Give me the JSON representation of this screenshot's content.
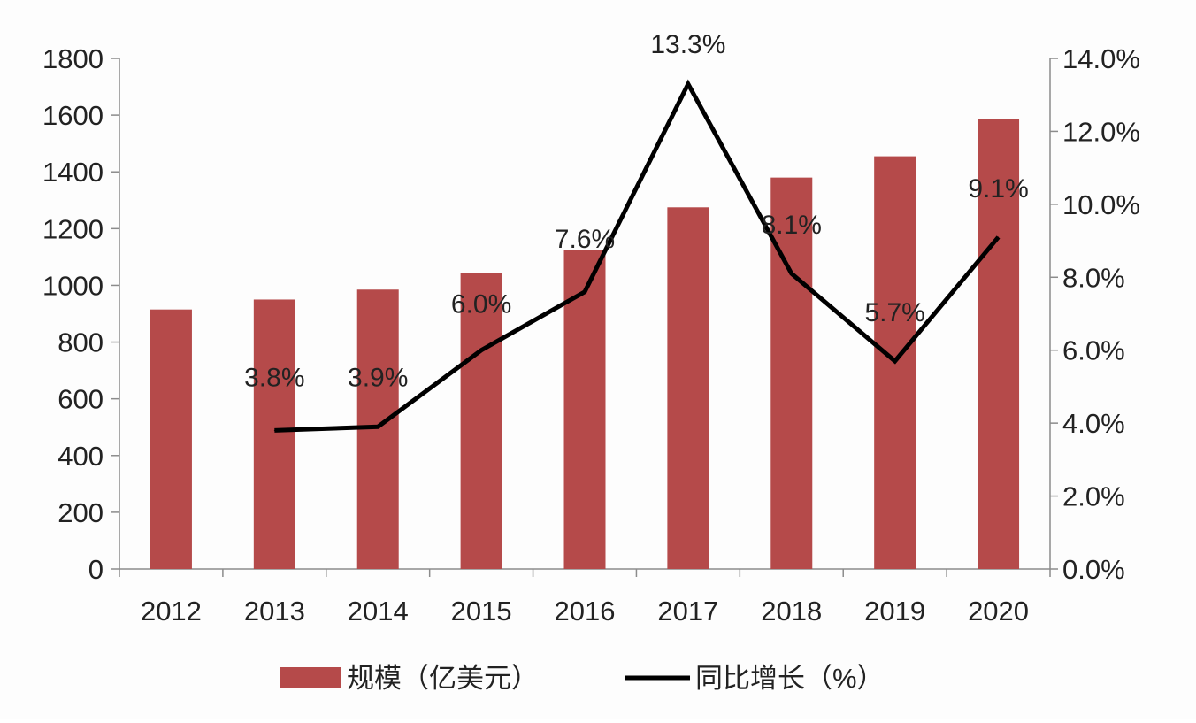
{
  "chart_data": {
    "type": "bar+line",
    "categories": [
      "2012",
      "2013",
      "2014",
      "2015",
      "2016",
      "2017",
      "2018",
      "2019",
      "2020"
    ],
    "series": [
      {
        "name": "规模（亿美元）",
        "type": "bar",
        "axis": "left",
        "color": "#b54a4a",
        "values": [
          915,
          950,
          985,
          1045,
          1125,
          1275,
          1380,
          1455,
          1585
        ]
      },
      {
        "name": "同比增长（%）",
        "type": "line",
        "axis": "right",
        "color": "#000000",
        "values": [
          null,
          3.8,
          3.9,
          6.0,
          7.6,
          13.3,
          8.1,
          5.7,
          9.1
        ],
        "labels": [
          null,
          "3.8%",
          "3.9%",
          "6.0%",
          "7.6%",
          "13.3%",
          "8.1%",
          "5.7%",
          "9.1%"
        ]
      }
    ],
    "y_left": {
      "min": 0,
      "max": 1800,
      "ticks": [
        "0",
        "200",
        "400",
        "600",
        "800",
        "1000",
        "1200",
        "1400",
        "1600",
        "1800"
      ]
    },
    "y_right": {
      "min": 0,
      "max": 14,
      "ticks": [
        "0.0%",
        "2.0%",
        "4.0%",
        "6.0%",
        "8.0%",
        "10.0%",
        "12.0%",
        "14.0%"
      ]
    },
    "legend": {
      "position": "bottom",
      "items": [
        "规模（亿美元）",
        "同比增长（%）"
      ]
    },
    "grid": false
  }
}
